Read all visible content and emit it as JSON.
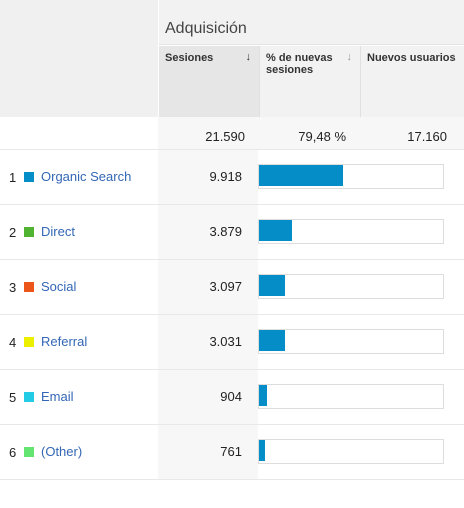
{
  "header": {
    "group_title": "Adquisición",
    "columns": [
      {
        "label": "Sesiones",
        "sort_icon": "sort-desc-arrow-icon"
      },
      {
        "label": "% de nuevas sesiones",
        "sort_icon": "sort-arrow-icon"
      },
      {
        "label": "Nuevos usuarios",
        "sort_icon": "sort-arrow-icon"
      }
    ]
  },
  "totals": {
    "sessions": "21.590",
    "new_sessions_pct": "79,48 %",
    "new_users": "17.160"
  },
  "rows": [
    {
      "index": "1",
      "channel": "Organic Search",
      "color": "#058dc7",
      "sessions": "9.918",
      "bar_share": 0.4594
    },
    {
      "index": "2",
      "channel": "Direct",
      "color": "#50b432",
      "sessions": "3.879",
      "bar_share": 0.1797
    },
    {
      "index": "3",
      "channel": "Social",
      "color": "#ed561b",
      "sessions": "3.097",
      "bar_share": 0.1434
    },
    {
      "index": "4",
      "channel": "Referral",
      "color": "#edef00",
      "sessions": "3.031",
      "bar_share": 0.1404
    },
    {
      "index": "5",
      "channel": "Email",
      "color": "#24cbe5",
      "sessions": "904",
      "bar_share": 0.0419
    },
    {
      "index": "6",
      "channel": "(Other)",
      "color": "#64e572",
      "sessions": "761",
      "bar_share": 0.0352
    }
  ],
  "colors": {
    "bar_fill": "#058dc7",
    "link": "#3367b5"
  }
}
